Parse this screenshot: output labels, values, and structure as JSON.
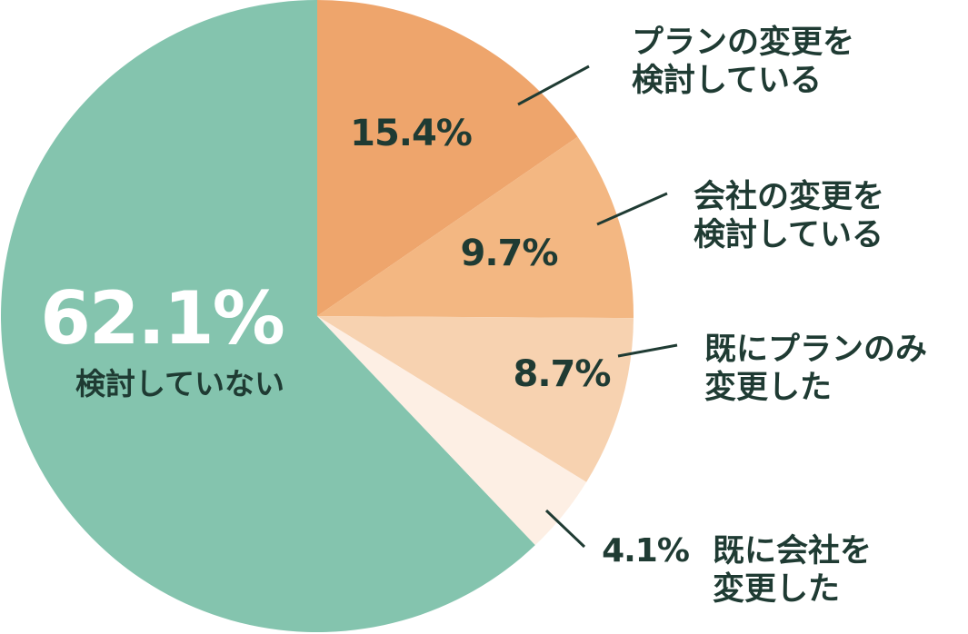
{
  "chart_data": {
    "type": "pie",
    "title": "",
    "start_angle_deg": 0,
    "direction": "clockwise",
    "slices": [
      {
        "label_lines": [
          "プランの変更を",
          "検討している"
        ],
        "value": 15.4,
        "display": "15.4%",
        "color": "#eea56c"
      },
      {
        "label_lines": [
          "会社の変更を",
          "検討している"
        ],
        "value": 9.7,
        "display": "9.7%",
        "color": "#f3b782"
      },
      {
        "label_lines": [
          "既にプランのみ",
          "変更した"
        ],
        "value": 8.7,
        "display": "8.7%",
        "color": "#f7d2b0"
      },
      {
        "label_lines": [
          "既に会社を",
          "変更した"
        ],
        "value": 4.1,
        "display": "4.1%",
        "color": "#fdefe4"
      },
      {
        "label_lines": [
          "検討していない"
        ],
        "value": 62.1,
        "display": "62.1%",
        "color": "#84c4ae"
      }
    ]
  },
  "colors": {
    "text_dark": "#1f3b33",
    "text_light": "#ffffff"
  }
}
